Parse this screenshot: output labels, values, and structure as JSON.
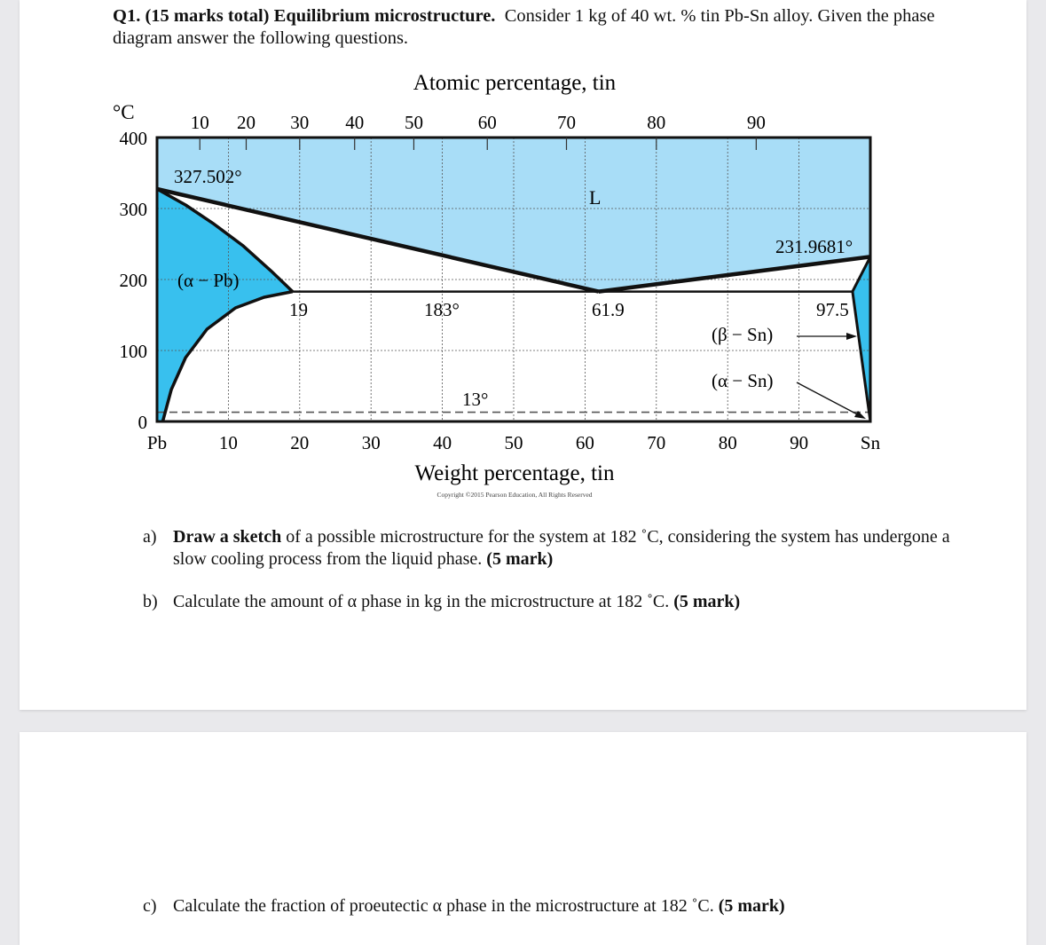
{
  "question": {
    "number": "Q1.",
    "marks": "(15 marks total)",
    "title": "Equilibrium microstructure.",
    "text": "Consider 1 kg of 40 wt. % tin Pb-Sn alloy. Given the phase diagram answer the following questions."
  },
  "parts": [
    {
      "label": "a)",
      "bold_lead": "Draw a sketch",
      "text": " of a possible microstructure for the system at 182 ˚C, considering the system has undergone a slow cooling process from the liquid phase. ",
      "marks": "(5 mark)"
    },
    {
      "label": "b)",
      "bold_lead": "",
      "text": "Calculate the amount of α phase in kg in the microstructure at 182 ˚C. ",
      "marks": "(5 mark)"
    },
    {
      "label": "c)",
      "bold_lead": "",
      "text": "Calculate the fraction of proeutectic α phase in the microstructure at 182 ˚C. ",
      "marks": "(5 mark)"
    }
  ],
  "chart_data": {
    "type": "phase-diagram",
    "top_axis_label": "Atomic percentage, tin",
    "xlabel": "Weight percentage, tin",
    "ylabel": "°C",
    "copyright": "Copyright ©2015 Pearson Education, All Rights Reserved",
    "xlim": [
      0,
      100
    ],
    "ylim": [
      0,
      400
    ],
    "x_ticks": [
      "Pb",
      "10",
      "20",
      "30",
      "40",
      "50",
      "60",
      "70",
      "80",
      "90",
      "Sn"
    ],
    "y_ticks": [
      "0",
      "100",
      "200",
      "300",
      "400"
    ],
    "top_ticks": [
      {
        "label": "10",
        "wt": 6
      },
      {
        "label": "20",
        "wt": 12.5
      },
      {
        "label": "30",
        "wt": 20
      },
      {
        "label": "40",
        "wt": 27.7
      },
      {
        "label": "50",
        "wt": 36
      },
      {
        "label": "60",
        "wt": 46.3
      },
      {
        "label": "70",
        "wt": 57.4
      },
      {
        "label": "80",
        "wt": 70
      },
      {
        "label": "90",
        "wt": 84
      }
    ],
    "curves": {
      "liquidus_left": [
        [
          0,
          327.5
        ],
        [
          61.9,
          183
        ]
      ],
      "liquidus_right": [
        [
          61.9,
          183
        ],
        [
          100,
          232
        ]
      ],
      "alpha_solidus": [
        [
          0,
          327.5
        ],
        [
          4,
          305
        ],
        [
          8,
          278
        ],
        [
          12,
          248
        ],
        [
          16,
          212
        ],
        [
          19,
          183
        ]
      ],
      "alpha_solvus": [
        [
          19,
          183
        ],
        [
          15,
          175
        ],
        [
          11,
          160
        ],
        [
          7,
          130
        ],
        [
          4,
          90
        ],
        [
          2,
          45
        ],
        [
          0.8,
          0
        ]
      ],
      "eutectic": [
        [
          19,
          183
        ],
        [
          97.5,
          183
        ]
      ],
      "beta_solidus": [
        [
          97.5,
          183
        ],
        [
          100,
          232
        ]
      ],
      "beta_solvus": [
        [
          97.5,
          183
        ],
        [
          100,
          0
        ]
      ],
      "allotropic_line": [
        [
          0,
          13
        ],
        [
          100,
          13
        ]
      ]
    },
    "labels": {
      "pb_melt": "327.502°",
      "sn_melt": "231.9681°",
      "liquid": "L",
      "alpha_pb": "(α − Pb)",
      "alpha_eut": "19",
      "eutectic_T": "183°",
      "eutectic_comp": "61.9",
      "beta_eut": "97.5",
      "beta_sn": "(β − Sn)",
      "alpha_sn": "(α − Sn)",
      "transform_T": "13°"
    },
    "colors": {
      "liquid": "#a8ddf7",
      "solid": "#38c0ee",
      "line": "#111111"
    }
  }
}
